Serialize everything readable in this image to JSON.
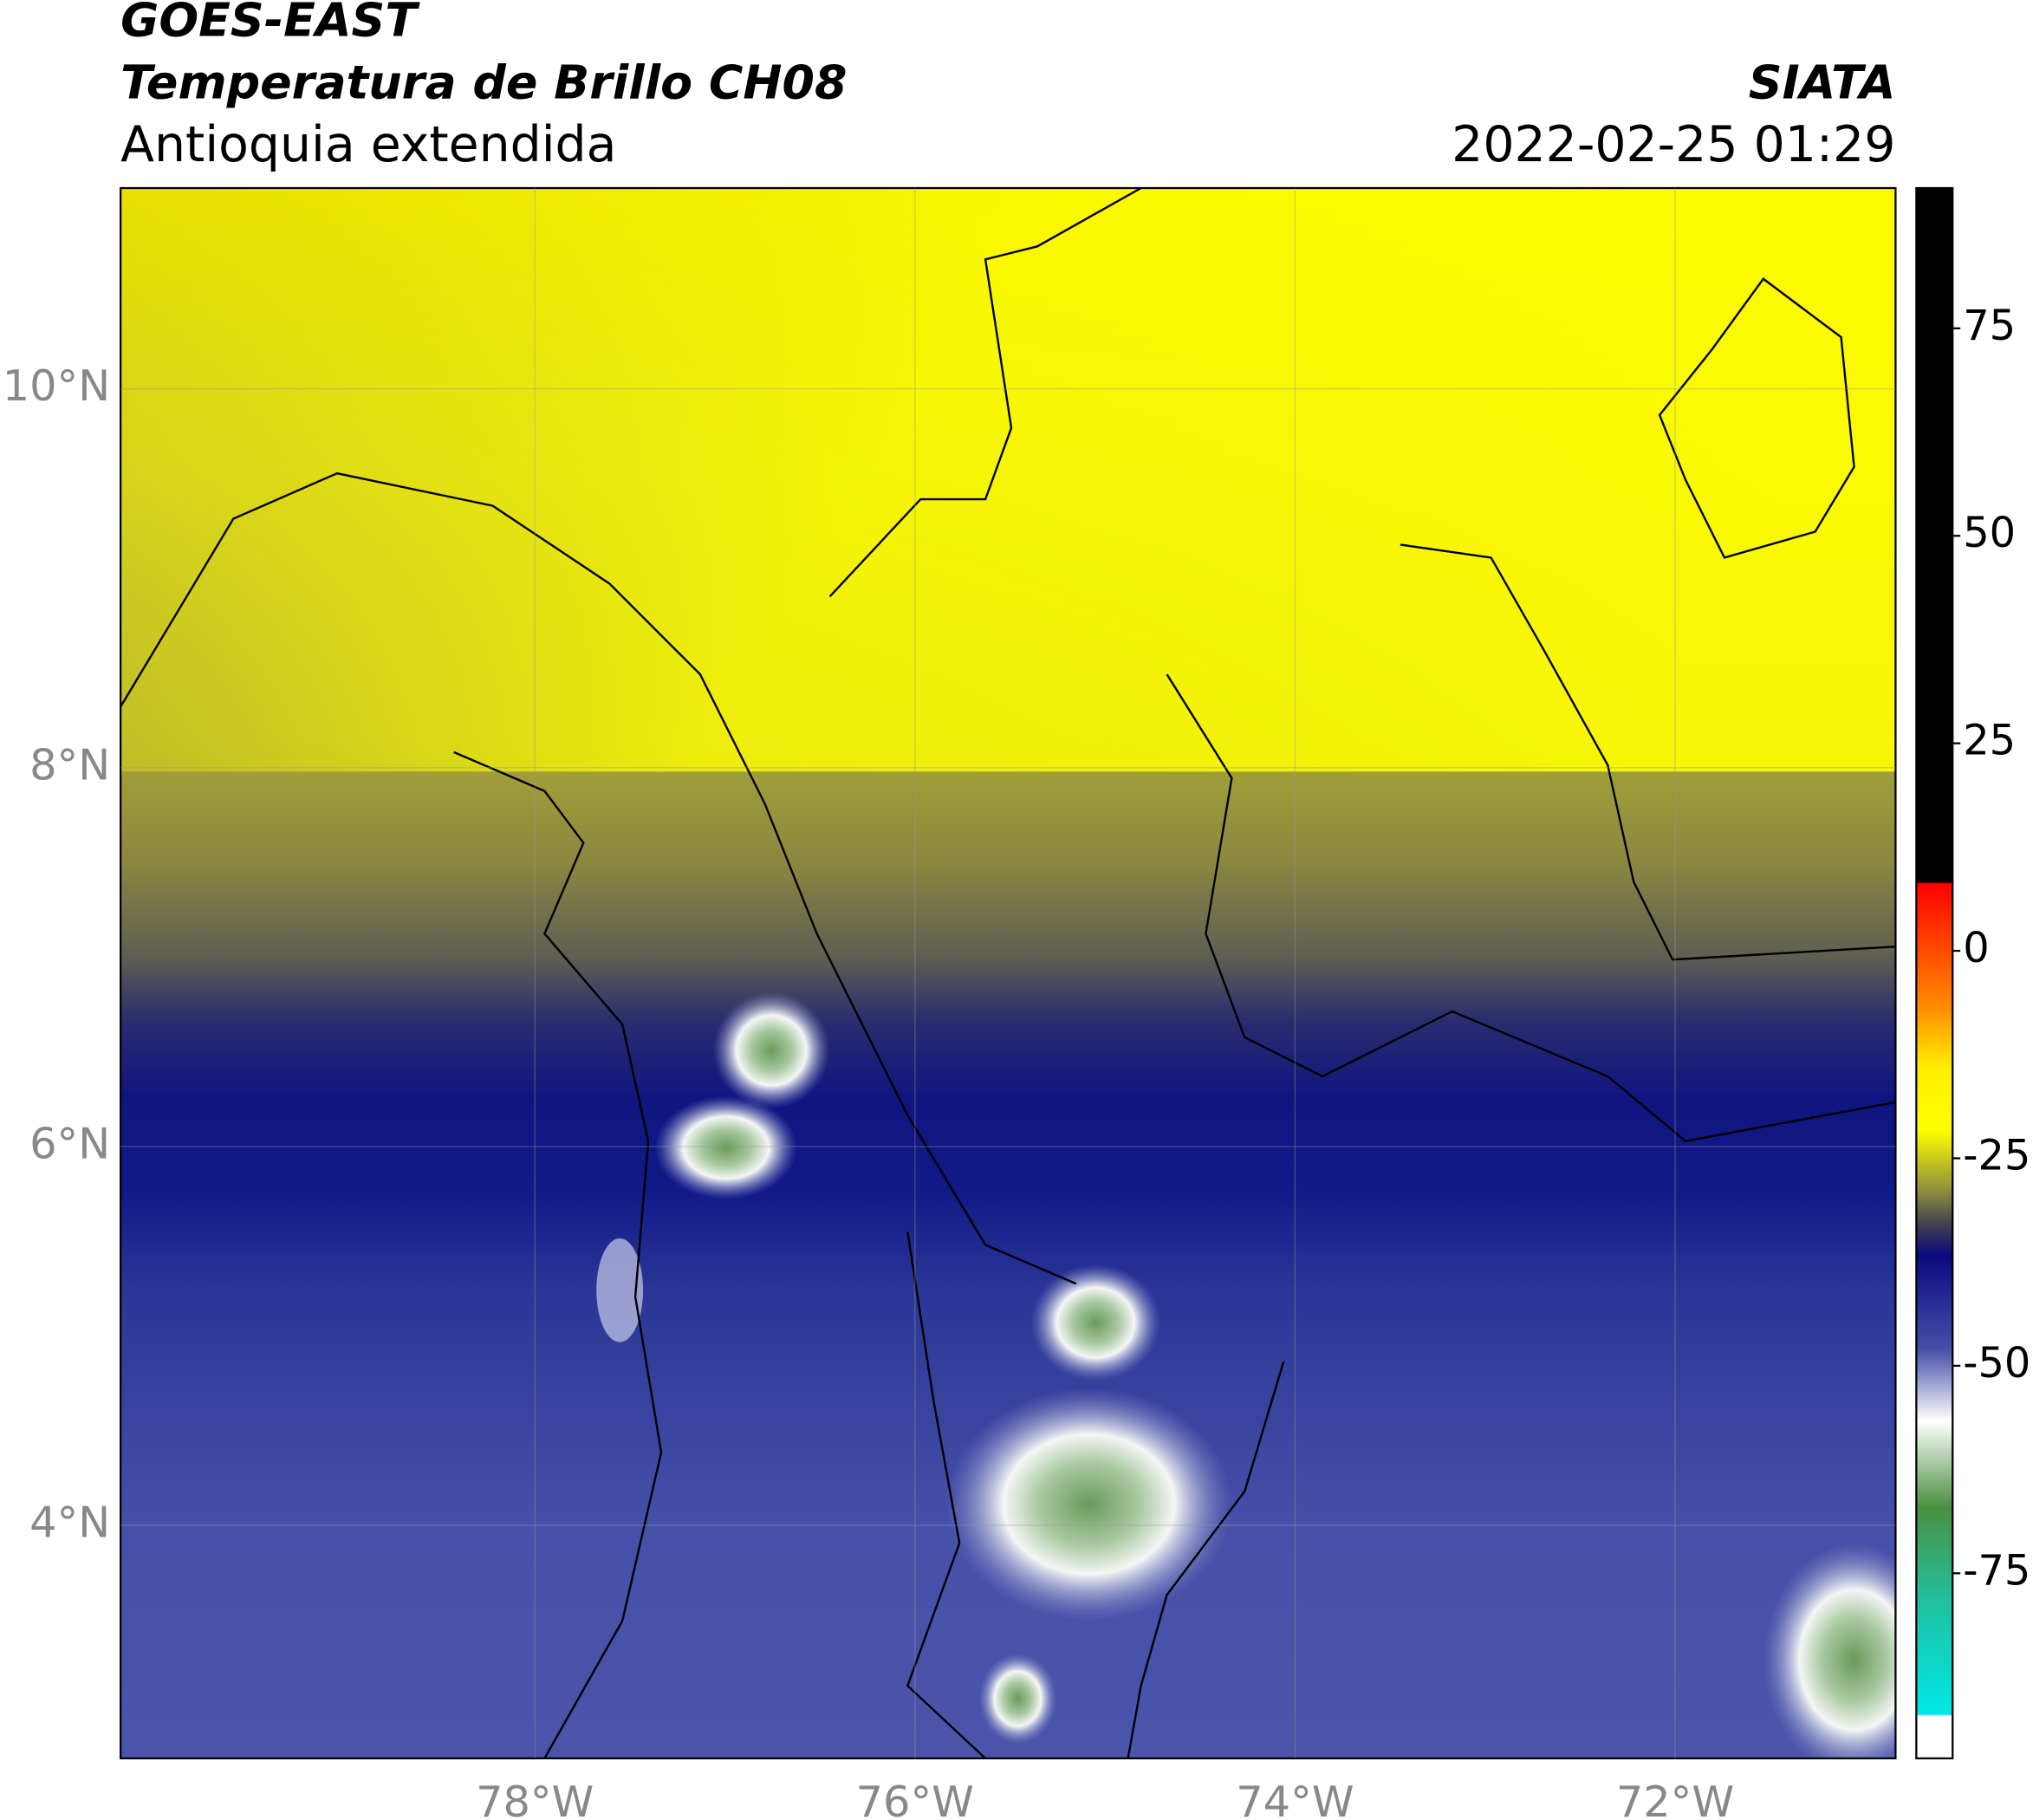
{
  "header": {
    "title": "GOES-EAST",
    "subtitle": "Temperatura de Brillo CH08",
    "region": "Antioquia extendida",
    "source": "SIATA",
    "datetime": "2022-02-25 01:29"
  },
  "map": {
    "xlim": [
      -80.18,
      -70.84
    ],
    "ylim": [
      2.77,
      11.06
    ],
    "xticks": [
      {
        "value": -78,
        "label": "78°W"
      },
      {
        "value": -76,
        "label": "76°W"
      },
      {
        "value": -74,
        "label": "74°W"
      },
      {
        "value": -72,
        "label": "72°W"
      }
    ],
    "yticks": [
      {
        "value": 4,
        "label": "4°N"
      },
      {
        "value": 6,
        "label": "6°N"
      },
      {
        "value": 8,
        "label": "8°N"
      },
      {
        "value": 10,
        "label": "10°N"
      }
    ]
  },
  "colorbar": {
    "lim": [
      -97.3,
      91.9
    ],
    "ticks": [
      75,
      50,
      25,
      0,
      -25,
      -50,
      -75
    ]
  }
}
